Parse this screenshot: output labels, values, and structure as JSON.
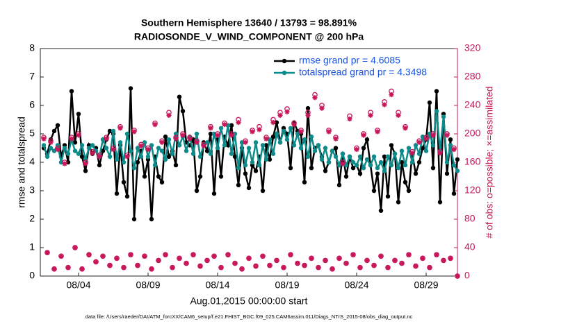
{
  "chart_data": {
    "type": "line",
    "title": "Southern Hemisphere 13640 / 13793 = 98.891%",
    "subtitle": "RADIOSONDE_V_WIND_COMPONENT @ 200 hPa",
    "ylabel": "rmse and totalspread",
    "y2label": "# of obs: o=possible; ×=assimilated",
    "xlabel": "Aug.01,2015 00:00:00 start",
    "footnote": "data file: /Users/raeder/DAI/ATM_forcXX/CAM6_setup/f.e21.FHIST_BGC.f09_025.CAM6assim.011/Diags_NTrS_2015-08/obs_diag_output.nc",
    "xlim": [
      0.25,
      30.25
    ],
    "xticks": [
      {
        "value": 3,
        "label": "08/04"
      },
      {
        "value": 8,
        "label": "08/09"
      },
      {
        "value": 13,
        "label": "08/14"
      },
      {
        "value": 18,
        "label": "08/19"
      },
      {
        "value": 23,
        "label": "08/24"
      },
      {
        "value": 28,
        "label": "08/29"
      }
    ],
    "ylim": [
      0,
      8
    ],
    "yticks": [
      0,
      1,
      2,
      3,
      4,
      5,
      6,
      7,
      8
    ],
    "y2lim": [
      0,
      320
    ],
    "y2ticks": [
      0,
      40,
      80,
      120,
      160,
      200,
      240,
      280,
      320
    ],
    "legend": "upper right",
    "x": [
      0.5,
      0.75,
      1,
      1.25,
      1.5,
      1.75,
      2,
      2.25,
      2.5,
      2.75,
      3,
      3.25,
      3.5,
      3.75,
      4,
      4.25,
      4.5,
      4.75,
      5,
      5.25,
      5.5,
      5.75,
      6,
      6.25,
      6.5,
      6.75,
      7,
      7.25,
      7.5,
      7.75,
      8,
      8.25,
      8.5,
      8.75,
      9,
      9.25,
      9.5,
      9.75,
      10,
      10.25,
      10.5,
      10.75,
      11,
      11.25,
      11.5,
      11.75,
      12,
      12.25,
      12.5,
      12.75,
      13,
      13.25,
      13.5,
      13.75,
      14,
      14.25,
      14.5,
      14.75,
      15,
      15.25,
      15.5,
      15.75,
      16,
      16.25,
      16.5,
      16.75,
      17,
      17.25,
      17.5,
      17.75,
      18,
      18.25,
      18.5,
      18.75,
      19,
      19.25,
      19.5,
      19.75,
      20,
      20.25,
      20.5,
      20.75,
      21,
      21.25,
      21.5,
      21.75,
      22,
      22.25,
      22.5,
      22.75,
      23,
      23.25,
      23.5,
      23.75,
      24,
      24.25,
      24.5,
      24.75,
      25,
      25.25,
      25.5,
      25.75,
      26,
      26.25,
      26.5,
      26.75,
      27,
      27.25,
      27.5,
      27.75,
      28,
      28.25,
      28.5,
      28.75,
      29,
      29.25,
      29.5,
      29.75,
      30,
      30.25
    ],
    "series": [
      {
        "name": "rmse grand pr = 4.6085",
        "color": "#000000",
        "marker": "dot",
        "values": [
          4.5,
          4.3,
          4.8,
          5.1,
          5.3,
          4.2,
          4.6,
          4.0,
          6.5,
          4.7,
          5.7,
          4.2,
          3.7,
          4.6,
          4.3,
          4.5,
          3.9,
          4.4,
          4.8,
          5.1,
          5.0,
          2.9,
          4.6,
          3.3,
          2.8,
          6.6,
          2.0,
          4.0,
          4.4,
          3.5,
          4.1,
          2.0,
          4.2,
          3.5,
          3.3,
          4.9,
          4.2,
          4.4,
          3.9,
          6.3,
          5.8,
          4.7,
          4.6,
          4.8,
          3.0,
          3.5,
          4.7,
          4.4,
          5.0,
          2.9,
          4.8,
          3.5,
          4.9,
          4.6,
          5.3,
          4.2,
          3.2,
          4.5,
          3.6,
          3.1,
          3.9,
          3.7,
          4.2,
          3.0,
          4.6,
          4.1,
          4.9,
          5.4,
          4.7,
          5.2,
          5.0,
          3.8,
          5.4,
          5.1,
          5.0,
          3.3,
          5.9,
          3.8,
          4.5,
          4.6,
          4.2,
          3.7,
          4.0,
          4.4,
          4.5,
          3.2,
          4.3,
          3.5,
          4.2,
          3.8,
          3.9,
          3.6,
          4.5,
          4.8,
          3.9,
          3.0,
          3.6,
          2.3,
          4.2,
          2.8,
          4.6,
          4.3,
          2.6,
          4.0,
          3.3,
          3.0,
          4.3,
          3.6,
          4.0,
          4.5,
          4.8,
          6.1,
          3.8,
          6.5,
          2.6,
          5.7,
          3.6,
          4.8,
          2.9,
          4.1
        ]
      },
      {
        "name": "totalspread grand pr = 4.3498",
        "color": "#0d8a8a",
        "marker": "dot",
        "values": [
          4.6,
          4.2,
          4.5,
          4.4,
          4.6,
          4.0,
          4.5,
          4.3,
          4.8,
          4.4,
          4.3,
          4.6,
          4.1,
          4.5,
          4.6,
          4.4,
          4.2,
          4.8,
          4.5,
          4.2,
          5.1,
          4.1,
          4.7,
          4.0,
          5.0,
          4.4,
          3.8,
          4.5,
          4.2,
          4.7,
          4.2,
          4.6,
          3.9,
          4.5,
          4.4,
          4.1,
          4.8,
          4.3,
          5.0,
          4.6,
          4.9,
          4.4,
          4.9,
          4.3,
          5.0,
          4.2,
          4.6,
          4.7,
          4.3,
          5.0,
          4.5,
          5.2,
          4.6,
          5.3,
          4.3,
          5.0,
          3.8,
          4.7,
          3.9,
          4.5,
          4.0,
          4.7,
          3.9,
          4.6,
          4.1,
          4.8,
          4.3,
          5.0,
          4.7,
          5.1,
          4.8,
          5.2,
          4.6,
          5.0,
          4.5,
          4.8,
          4.2,
          4.9,
          4.4,
          4.6,
          4.1,
          4.5,
          4.0,
          4.4,
          4.2,
          3.9,
          4.3,
          3.9,
          4.2,
          4.0,
          3.9,
          4.2,
          3.8,
          4.1,
          3.9,
          4.2,
          3.8,
          4.0,
          3.7,
          4.2,
          3.9,
          4.3,
          3.8,
          4.4,
          3.9,
          4.5,
          4.0,
          4.6,
          4.3,
          4.9,
          4.4,
          5.0,
          4.6,
          5.8,
          4.4,
          5.6,
          4.0,
          4.6,
          3.9,
          3.7
        ]
      },
      {
        "axis": "y2",
        "color": "#c8155a",
        "marker": "circle",
        "values": [
          195,
          33,
          190,
          10,
          180,
          28,
          160,
          12,
          195,
          40,
          200,
          10,
          160,
          30,
          175,
          20,
          170,
          28,
          195,
          15,
          180,
          25,
          210,
          12,
          170,
          30,
          205,
          15,
          185,
          28,
          180,
          10,
          215,
          22,
          190,
          30,
          230,
          12,
          195,
          25,
          200,
          18,
          195,
          30,
          190,
          14,
          185,
          22,
          210,
          28,
          200,
          12,
          215,
          30,
          200,
          18,
          220,
          10,
          190,
          25,
          205,
          14,
          210,
          28,
          195,
          15,
          220,
          22,
          230,
          12,
          235,
          30,
          215,
          18,
          205,
          15,
          230,
          25,
          255,
          12,
          240,
          22,
          205,
          10,
          195,
          25,
          160,
          18,
          225,
          30,
          180,
          12,
          200,
          22,
          230,
          15,
          205,
          28,
          245,
          12,
          260,
          22,
          230,
          18,
          210,
          30,
          175,
          14,
          190,
          25,
          195,
          12,
          200,
          30,
          175,
          22,
          200,
          25,
          180,
          0
        ]
      },
      {
        "axis": "y2",
        "color": "#c8155a",
        "marker": "asterisk",
        "values": [
          193,
          33,
          188,
          10,
          178,
          28,
          158,
          12,
          193,
          40,
          198,
          10,
          158,
          30,
          173,
          20,
          168,
          28,
          193,
          15,
          178,
          25,
          208,
          12,
          168,
          30,
          203,
          15,
          183,
          28,
          178,
          10,
          213,
          22,
          188,
          30,
          226,
          12,
          193,
          25,
          198,
          18,
          193,
          30,
          188,
          14,
          183,
          22,
          208,
          28,
          198,
          12,
          213,
          30,
          198,
          18,
          216,
          10,
          188,
          25,
          203,
          14,
          206,
          28,
          193,
          15,
          216,
          22,
          226,
          12,
          231,
          30,
          213,
          18,
          203,
          15,
          226,
          25,
          251,
          12,
          236,
          22,
          203,
          10,
          193,
          25,
          158,
          18,
          221,
          30,
          178,
          12,
          198,
          22,
          226,
          15,
          203,
          28,
          241,
          12,
          255,
          22,
          226,
          18,
          208,
          30,
          173,
          14,
          188,
          25,
          193,
          12,
          198,
          30,
          173,
          22,
          198,
          25,
          178,
          0
        ]
      }
    ]
  }
}
